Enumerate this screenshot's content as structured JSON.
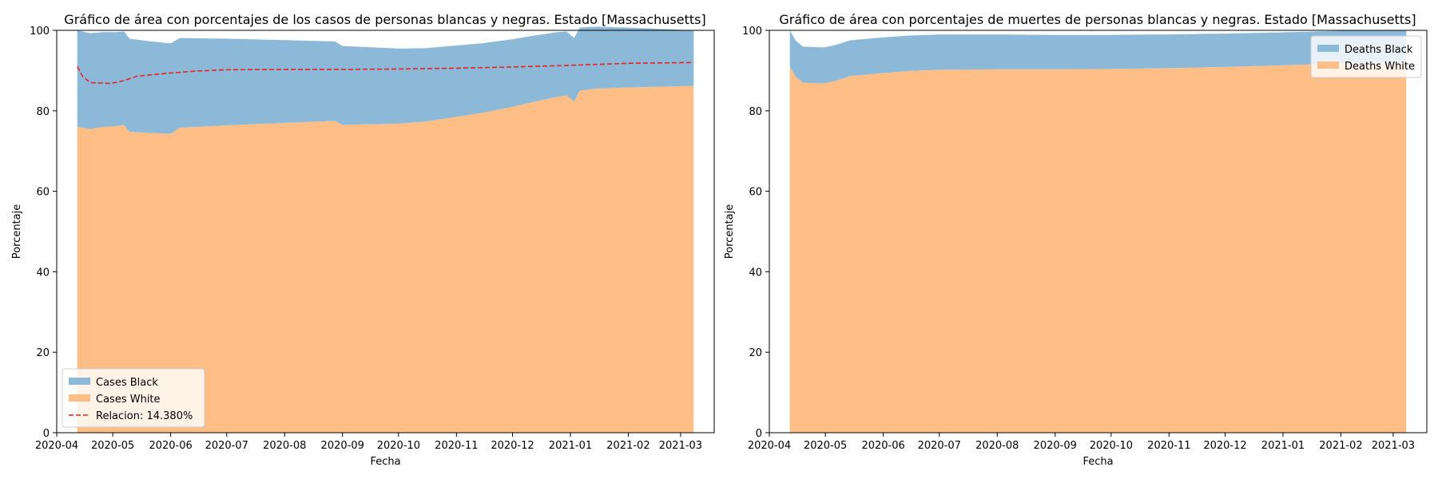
{
  "chart_data": [
    {
      "type": "area",
      "title": "Gráfico de área con porcentajes de los casos de personas blancas y negras. Estado [Massachusetts]",
      "xlabel": "Fecha",
      "ylabel": "Porcentaje",
      "xlim": [
        "2020-04-01",
        "2021-03-19"
      ],
      "ylim": [
        0,
        100
      ],
      "xticks": [
        "2020-04",
        "2020-05",
        "2020-06",
        "2020-07",
        "2020-08",
        "2020-09",
        "2020-10",
        "2020-11",
        "2020-12",
        "2021-01",
        "2021-02",
        "2021-03"
      ],
      "yticks": [
        0,
        20,
        40,
        60,
        80,
        100
      ],
      "grid": false,
      "legend_position": "lower-left",
      "stacked": true,
      "series": [
        {
          "name": "Cases White",
          "kind": "area",
          "color": "#ffbe86",
          "x": [
            "2020-04-12",
            "2020-04-19",
            "2020-04-26",
            "2020-05-03",
            "2020-05-07",
            "2020-05-10",
            "2020-05-20",
            "2020-06-01",
            "2020-06-06",
            "2020-06-15",
            "2020-07-01",
            "2020-08-01",
            "2020-08-28",
            "2020-09-01",
            "2020-10-01",
            "2020-10-15",
            "2020-11-01",
            "2020-11-15",
            "2020-12-01",
            "2020-12-15",
            "2020-12-25",
            "2020-12-30",
            "2021-01-03",
            "2021-01-06",
            "2021-01-15",
            "2021-02-01",
            "2021-03-08"
          ],
          "values": [
            76,
            75.5,
            76,
            76.2,
            76.5,
            74.8,
            74.5,
            74.3,
            75.8,
            76,
            76.4,
            77,
            77.5,
            76.5,
            76.8,
            77.3,
            78.5,
            79.5,
            81,
            82.5,
            83.5,
            83.8,
            82.3,
            85,
            85.5,
            85.8,
            86.2
          ]
        },
        {
          "name": "Cases Black",
          "kind": "area",
          "color": "#8cb9d8",
          "x": [
            "2020-04-12",
            "2021-03-08"
          ],
          "values": [
            24,
            13.8
          ]
        },
        {
          "name": "Relacion: 14.380%",
          "kind": "line",
          "color": "#e8221f",
          "dash": "dashed",
          "x": [
            "2020-04-12",
            "2020-04-15",
            "2020-04-19",
            "2020-04-24",
            "2020-04-30",
            "2020-05-07",
            "2020-05-14",
            "2020-05-25",
            "2020-06-01",
            "2020-06-15",
            "2020-07-01",
            "2020-08-01",
            "2020-09-01",
            "2020-10-01",
            "2020-11-01",
            "2020-12-01",
            "2021-01-01",
            "2021-02-01",
            "2021-03-08"
          ],
          "values": [
            91,
            88.5,
            87,
            86.9,
            86.8,
            87.5,
            88.6,
            89.1,
            89.4,
            89.9,
            90.2,
            90.3,
            90.3,
            90.4,
            90.6,
            90.9,
            91.3,
            91.8,
            92
          ]
        }
      ]
    },
    {
      "type": "area",
      "title": "Gráfico de área con porcentajes de muertes de personas blancas y negras. Estado [Massachusetts]",
      "xlabel": "Fecha",
      "ylabel": "Porcentaje",
      "xlim": [
        "2020-04-01",
        "2021-03-19"
      ],
      "ylim": [
        0,
        100
      ],
      "xticks": [
        "2020-04",
        "2020-05",
        "2020-06",
        "2020-07",
        "2020-08",
        "2020-09",
        "2020-10",
        "2020-11",
        "2020-12",
        "2021-01",
        "2021-02",
        "2021-03"
      ],
      "yticks": [
        0,
        20,
        40,
        60,
        80,
        100
      ],
      "grid": false,
      "legend_position": "upper-right",
      "stacked": true,
      "series": [
        {
          "name": "Deaths White",
          "kind": "area",
          "color": "#ffbe86",
          "x": [
            "2020-04-12",
            "2020-04-15",
            "2020-04-19",
            "2020-04-24",
            "2020-04-30",
            "2020-05-07",
            "2020-05-14",
            "2020-05-25",
            "2020-06-01",
            "2020-06-15",
            "2020-07-01",
            "2020-08-01",
            "2020-09-01",
            "2020-10-01",
            "2020-11-01",
            "2020-12-01",
            "2021-01-01",
            "2021-02-01",
            "2021-03-08"
          ],
          "values": [
            91,
            88.5,
            87,
            86.9,
            86.8,
            87.5,
            88.6,
            89.1,
            89.4,
            89.9,
            90.2,
            90.3,
            90.3,
            90.4,
            90.6,
            90.9,
            91.3,
            91.8,
            92
          ]
        },
        {
          "name": "Deaths Black",
          "kind": "area",
          "color": "#8cb9d8",
          "x": [
            "2020-04-12",
            "2021-03-08"
          ],
          "values": [
            9,
            8
          ]
        }
      ]
    }
  ]
}
